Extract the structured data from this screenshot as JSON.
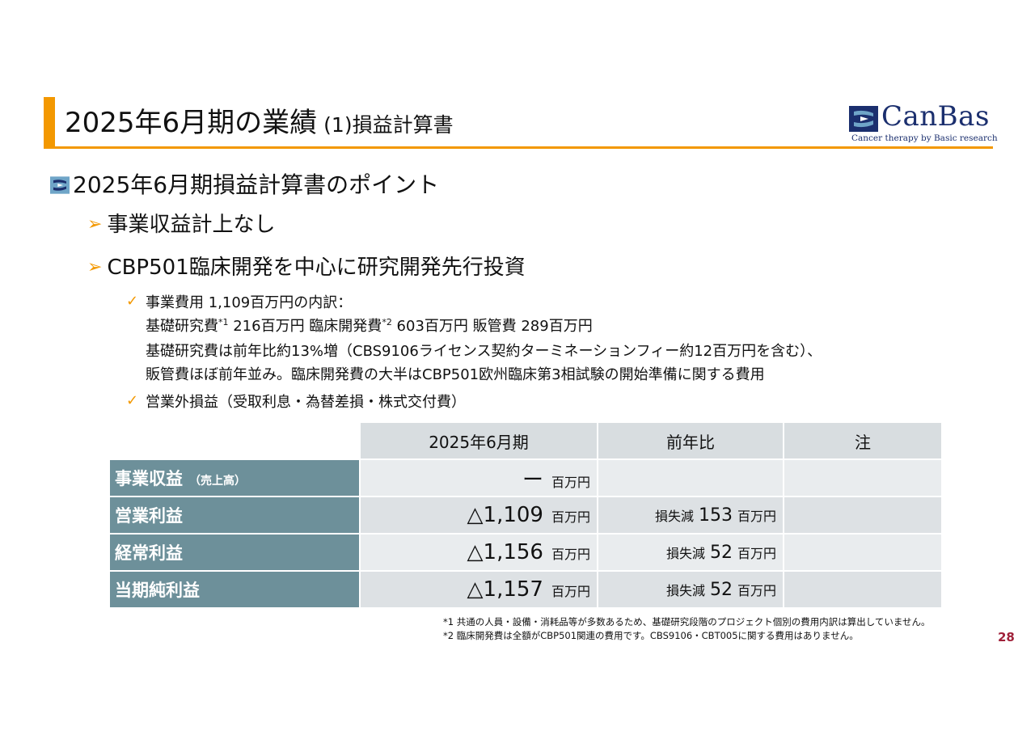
{
  "header": {
    "title_main": "2025年6月期の業績",
    "title_sub": "(1)損益計算書",
    "logo": {
      "name": "CanBas",
      "tagline": "Cancer therapy by Basic research",
      "brand_color": "#1b2f6e",
      "mark_colors": [
        "#1b2f6e",
        "#6fa5c8"
      ]
    },
    "accent_color": "#f39800"
  },
  "content": {
    "heading": "2025年6月期損益計算書のポイント",
    "points": [
      "事業収益計上なし",
      "CBP501臨床開発を中心に研究開発先行投資"
    ],
    "details": {
      "line1": "事業費用 1,109百万円の内訳：",
      "line2_a": "基礎研究費",
      "line2_sup1": "*1",
      "line2_b": " 216百万円 臨床開発費",
      "line2_sup2": "*2",
      "line2_c": " 603百万円 販管費 289百万円",
      "line3": "基礎研究費は前年比約13%増（CBS9106ライセンス契約ターミネーションフィー約12百万円を含む）、",
      "line4": "販管費ほぼ前年並み。臨床開発費の大半はCBP501欧州臨床第3相試験の開始準備に関する費用",
      "line5": "営業外損益（受取利息・為替差損・株式交付費）"
    }
  },
  "table": {
    "headers": [
      "2025年6月期",
      "前年比",
      "注"
    ],
    "rows": [
      {
        "label": "事業収益",
        "label_small": "（売上高）",
        "value": "ー",
        "unit": "百万円",
        "yoy_prefix": "",
        "yoy_num": "",
        "yoy_unit": "",
        "note": ""
      },
      {
        "label": "営業利益",
        "label_small": "",
        "value": "△1,109",
        "unit": "百万円",
        "yoy_prefix": "損失減",
        "yoy_num": "153",
        "yoy_unit": "百万円",
        "note": ""
      },
      {
        "label": "経常利益",
        "label_small": "",
        "value": "△1,156",
        "unit": "百万円",
        "yoy_prefix": "損失減",
        "yoy_num": "52",
        "yoy_unit": "百万円",
        "note": ""
      },
      {
        "label": "当期純利益",
        "label_small": "",
        "value": "△1,157",
        "unit": "百万円",
        "yoy_prefix": "損失減",
        "yoy_num": "52",
        "yoy_unit": "百万円",
        "note": ""
      }
    ]
  },
  "footnotes": [
    "*1 共通の人員・設備・消耗品等が多数あるため、基礎研究段階のプロジェクト個別の費用内訳は算出していません。",
    "*2 臨床開発費は全額がCBP501関連の費用です。CBS9106・CBT005に関する費用はありません。"
  ],
  "page_number": "28"
}
